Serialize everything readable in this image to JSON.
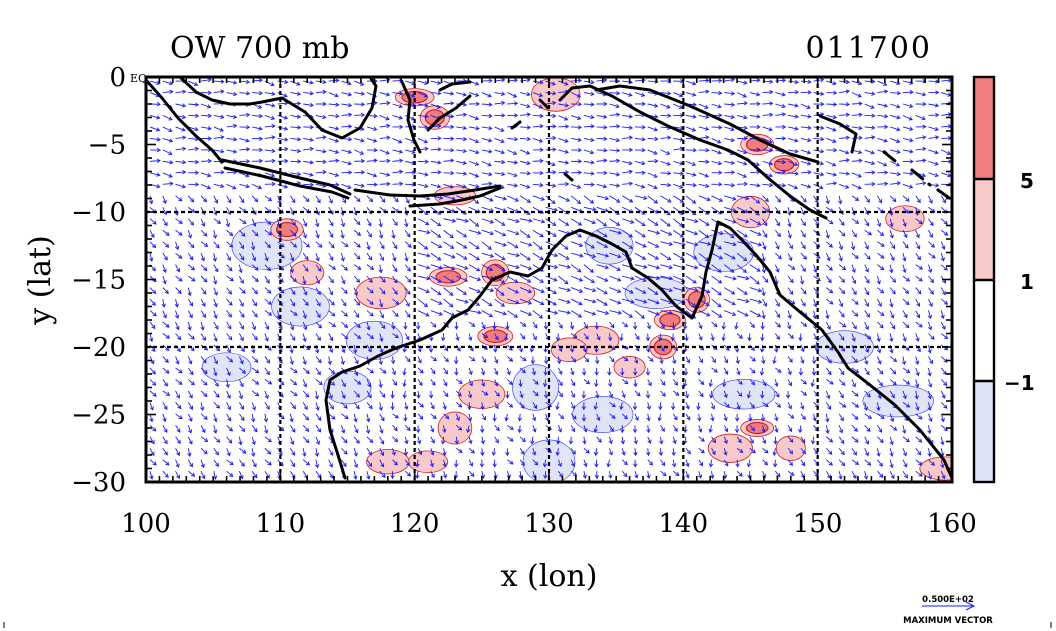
{
  "title_left": "OW 700 mb",
  "title_right": "011700",
  "xlabel": "x (lon)",
  "ylabel": "y (lat)",
  "x_ticks": [
    "100",
    "110",
    "120",
    "130",
    "140",
    "150",
    "160"
  ],
  "y_ticks": [
    "0",
    "−5",
    "−10",
    "−15",
    "−20",
    "−25",
    "−30"
  ],
  "y_top_suffix": "EQ",
  "colorbar": {
    "labels": [
      "5",
      "1",
      "−1"
    ],
    "colors": {
      "strong_pos": "#f07c7c",
      "weak_pos": "#f9c8c8",
      "neutral": "#ffffff",
      "neg": "#dde2f7"
    }
  },
  "vector_key": {
    "value": "0.500E+02",
    "label": "MAXIMUM VECTOR"
  },
  "colors": {
    "vector": "#1a1aff",
    "coast": "#000000",
    "grid": "#000000",
    "contour_pos": "#cc2020"
  },
  "map_data": {
    "lon_range": [
      100,
      160
    ],
    "lat_range": [
      -30,
      0
    ],
    "grid_lon": [
      110,
      120,
      130,
      140,
      150
    ],
    "grid_lat": [
      -10,
      -20
    ],
    "pos_blobs": [
      {
        "lon": 110.5,
        "lat": -11.3,
        "level": "strong"
      },
      {
        "lon": 122.5,
        "lat": -14.8,
        "level": "strong"
      },
      {
        "lon": 126.0,
        "lat": -14.5,
        "level": "strong"
      },
      {
        "lon": 127.5,
        "lat": -16.0,
        "level": "weak"
      },
      {
        "lon": 126.0,
        "lat": -19.2,
        "level": "strong"
      },
      {
        "lon": 138.5,
        "lat": -20.0,
        "level": "strong"
      },
      {
        "lon": 139.0,
        "lat": -18.0,
        "level": "strong"
      },
      {
        "lon": 141.0,
        "lat": -16.5,
        "level": "strong"
      },
      {
        "lon": 123.0,
        "lat": -26.0,
        "level": "weak"
      },
      {
        "lon": 121.0,
        "lat": -28.5,
        "level": "weak"
      },
      {
        "lon": 118.0,
        "lat": -28.5,
        "level": "weak"
      },
      {
        "lon": 125.0,
        "lat": -23.5,
        "level": "weak"
      },
      {
        "lon": 136.0,
        "lat": -21.5,
        "level": "weak"
      },
      {
        "lon": 145.5,
        "lat": -26.0,
        "level": "strong"
      },
      {
        "lon": 148.0,
        "lat": -27.5,
        "level": "weak"
      },
      {
        "lon": 143.5,
        "lat": -27.5,
        "level": "weak"
      },
      {
        "lon": 159.5,
        "lat": -29.0,
        "level": "weak"
      },
      {
        "lon": 156.5,
        "lat": -10.5,
        "level": "weak"
      },
      {
        "lon": 145.0,
        "lat": -10.0,
        "level": "weak"
      },
      {
        "lon": 145.5,
        "lat": -5.0,
        "level": "strong"
      },
      {
        "lon": 147.5,
        "lat": -6.5,
        "level": "strong"
      },
      {
        "lon": 120.0,
        "lat": -1.5,
        "level": "strong"
      },
      {
        "lon": 121.5,
        "lat": -3.0,
        "level": "strong"
      },
      {
        "lon": 130.5,
        "lat": -1.3,
        "level": "weak"
      },
      {
        "lon": 117.5,
        "lat": -16.0,
        "level": "weak"
      },
      {
        "lon": 133.5,
        "lat": -19.5,
        "level": "weak"
      },
      {
        "lon": 123.0,
        "lat": -8.8,
        "level": "weak"
      },
      {
        "lon": 131.5,
        "lat": -20.2,
        "level": "weak"
      },
      {
        "lon": 112.0,
        "lat": -14.5,
        "level": "weak"
      }
    ],
    "neg_blobs": [
      {
        "lon": 111.5,
        "lat": -17.0
      },
      {
        "lon": 115.0,
        "lat": -23.0
      },
      {
        "lon": 117.0,
        "lat": -19.5
      },
      {
        "lon": 129.0,
        "lat": -23.0
      },
      {
        "lon": 134.0,
        "lat": -25.0
      },
      {
        "lon": 130.0,
        "lat": -28.5
      },
      {
        "lon": 144.5,
        "lat": -23.5
      },
      {
        "lon": 152.0,
        "lat": -20.0
      },
      {
        "lon": 138.0,
        "lat": -16.0
      },
      {
        "lon": 143.0,
        "lat": -13.0
      },
      {
        "lon": 106.0,
        "lat": -21.5
      },
      {
        "lon": 109.0,
        "lat": -12.5
      },
      {
        "lon": 134.5,
        "lat": -12.5
      },
      {
        "lon": 156.0,
        "lat": -24.0
      }
    ]
  }
}
